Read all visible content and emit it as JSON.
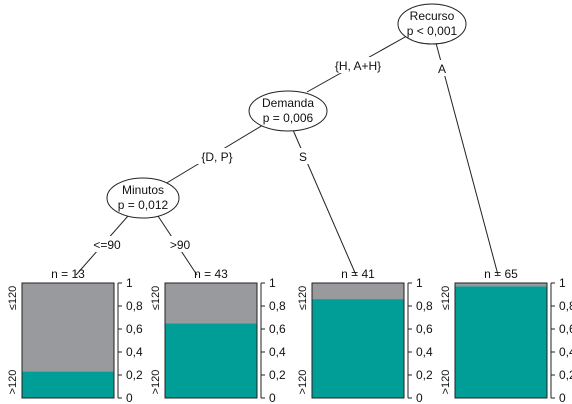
{
  "colors": {
    "bar_upper": "#999a9d",
    "bar_lower": "#009e96",
    "line": "#222222",
    "background": "#ffffff"
  },
  "tree": {
    "nodes": [
      {
        "id": "recurso",
        "name": "Recurso",
        "p": "p < 0,001"
      },
      {
        "id": "demanda",
        "name": "Demanda",
        "p": "p = 0,006"
      },
      {
        "id": "minutos",
        "name": "Minutos",
        "p": "p = 0,012"
      }
    ],
    "edges": [
      {
        "id": "recurso-demanda",
        "label": "{H, A+H}"
      },
      {
        "id": "recurso-leaf4",
        "label": "A"
      },
      {
        "id": "demanda-minutos",
        "label": "{D, P}"
      },
      {
        "id": "demanda-leaf3",
        "label": "S"
      },
      {
        "id": "minutos-leaf1",
        "label": "<=90"
      },
      {
        "id": "minutos-leaf2",
        "label": ">90"
      }
    ]
  },
  "leaf_axis": {
    "ticks": [
      "0",
      "0,2",
      "0,4",
      "0,6",
      "0,8",
      "1"
    ],
    "tick_values": [
      0,
      0.2,
      0.4,
      0.6,
      0.8,
      1
    ],
    "category_top": "≤120",
    "category_bottom": ">120"
  },
  "chart_data": {
    "type": "bar",
    "stacked": true,
    "categories": [
      "n = 13",
      "n = 43",
      "n = 41",
      "n = 65"
    ],
    "series": [
      {
        "name": ">120",
        "values": [
          0.23,
          0.65,
          0.86,
          0.97
        ]
      },
      {
        "name": "≤120",
        "values": [
          0.77,
          0.35,
          0.14,
          0.03
        ]
      }
    ],
    "ylim": [
      0,
      1
    ],
    "yticks": [
      "0",
      "0,2",
      "0,4",
      "0,6",
      "0,8",
      "1"
    ]
  }
}
